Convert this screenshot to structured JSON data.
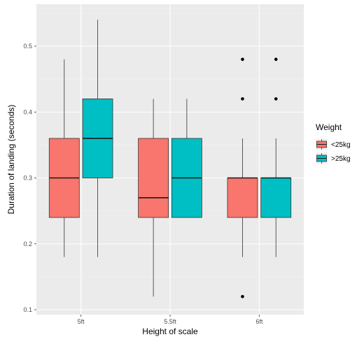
{
  "chart_data": {
    "type": "boxplot",
    "xlabel": "Height of scale",
    "ylabel": "Duration of landing (seconds)",
    "categories": [
      "5ft",
      "5.5ft",
      "6ft"
    ],
    "ylim": [
      0.1,
      0.55
    ],
    "yticks": [
      0.1,
      0.2,
      0.3,
      0.4,
      0.5
    ],
    "ytick_labels": [
      "0.1",
      "0.2",
      "0.3",
      "0.4",
      "0.5"
    ],
    "grid": true,
    "legend": {
      "title": "Weight",
      "position": "right",
      "entries": [
        "<25kg",
        ">25kg"
      ]
    },
    "series": [
      {
        "name": "<25kg",
        "color": "#F8766D",
        "boxes": [
          {
            "category": "5ft",
            "min": 0.18,
            "q1": 0.24,
            "median": 0.3,
            "q3": 0.36,
            "max": 0.48,
            "outliers": []
          },
          {
            "category": "5.5ft",
            "min": 0.12,
            "q1": 0.24,
            "median": 0.27,
            "q3": 0.36,
            "max": 0.42,
            "outliers": []
          },
          {
            "category": "6ft",
            "min": 0.18,
            "q1": 0.24,
            "median": 0.3,
            "q3": 0.3,
            "max": 0.36,
            "outliers": [
              0.12,
              0.42,
              0.48
            ]
          }
        ]
      },
      {
        "name": ">25kg",
        "color": "#00BFC4",
        "boxes": [
          {
            "category": "5ft",
            "min": 0.18,
            "q1": 0.3,
            "median": 0.36,
            "q3": 0.42,
            "max": 0.54,
            "outliers": []
          },
          {
            "category": "5.5ft",
            "min": 0.24,
            "q1": 0.24,
            "median": 0.3,
            "q3": 0.36,
            "max": 0.42,
            "outliers": []
          },
          {
            "category": "6ft",
            "min": 0.18,
            "q1": 0.24,
            "median": 0.3,
            "q3": 0.3,
            "max": 0.36,
            "outliers": [
              0.42,
              0.48
            ]
          }
        ]
      }
    ]
  }
}
